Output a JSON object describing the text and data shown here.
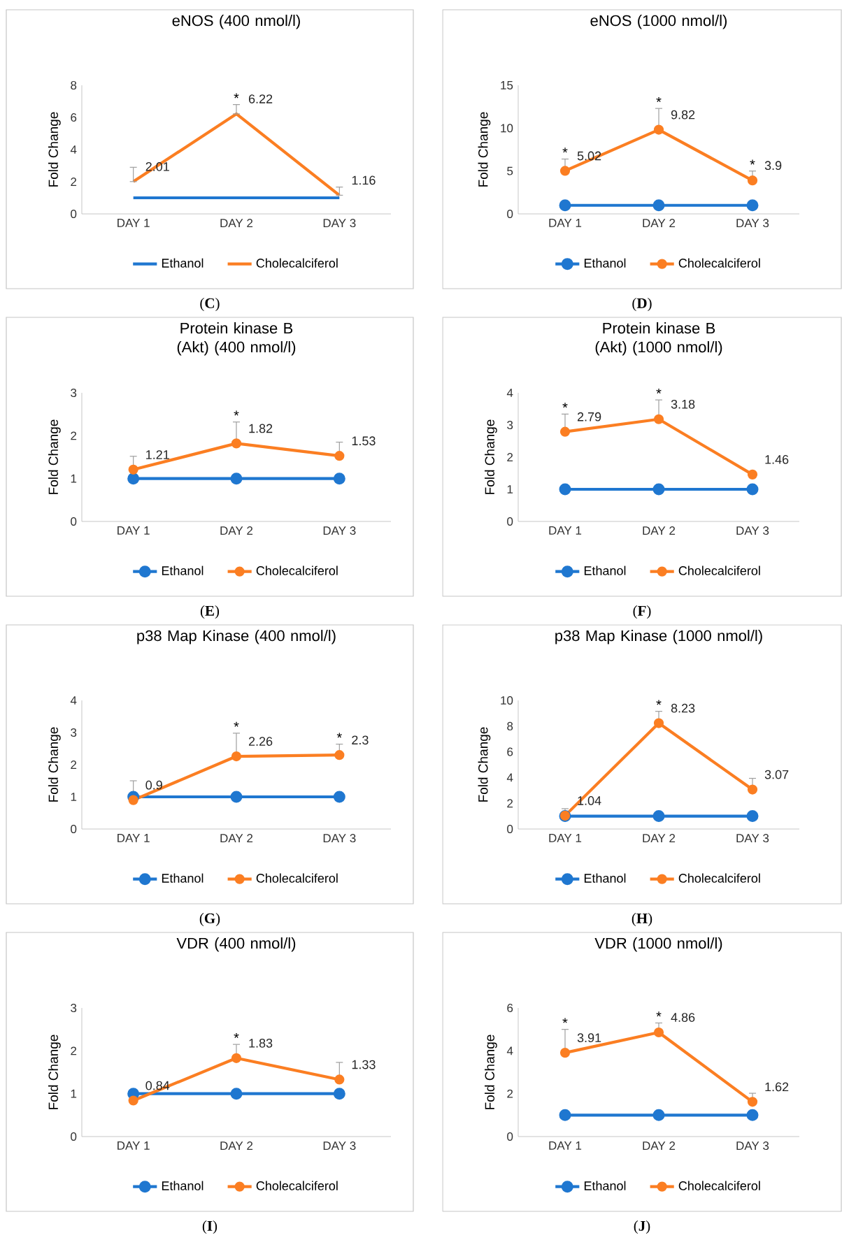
{
  "chart_data": [
    {
      "type": "line",
      "title": "eNOS (400 nmol/l)",
      "ylabel": "Fold Change",
      "categories": [
        "DAY 1",
        "DAY 2",
        "DAY 3"
      ],
      "ylim": [
        0,
        8
      ],
      "yticks": [
        0,
        2,
        4,
        6,
        8
      ],
      "legend": "bottom",
      "marker": "none",
      "series": [
        {
          "name": "Ethanol",
          "color": "#1f77d0",
          "values": [
            1,
            1,
            1
          ]
        },
        {
          "name": "Cholecalciferol",
          "color": "#fb7e22",
          "values": [
            2.01,
            6.22,
            1.16
          ],
          "errors": [
            [
              2.01,
              2.9
            ],
            [
              6.22,
              6.8
            ],
            [
              1.16,
              1.67
            ]
          ],
          "value_labels": [
            "2.01",
            "6.22",
            "1.16"
          ]
        }
      ],
      "annotations": [
        {
          "text": "*",
          "x": "DAY 2",
          "y": 6.8
        },
        "(**C**)"
      ]
    },
    {
      "type": "line",
      "title": "eNOS (1000 nmol/l)",
      "ylabel": "Fold Change",
      "categories": [
        "DAY 1",
        "DAY 2",
        "DAY 3"
      ],
      "ylim": [
        0,
        15
      ],
      "yticks": [
        0,
        5,
        10,
        15
      ],
      "legend": "bottom",
      "marker": "circle",
      "series": [
        {
          "name": "Ethanol",
          "color": "#1f77d0",
          "values": [
            1,
            1,
            1
          ]
        },
        {
          "name": "Cholecalciferol",
          "color": "#fb7e22",
          "values": [
            5.02,
            9.82,
            3.9
          ],
          "errors": [
            [
              5.02,
              6.4
            ],
            [
              9.82,
              12.3
            ],
            [
              3.9,
              5.0
            ]
          ],
          "value_labels": [
            "5.02",
            "9.82",
            "3.9"
          ]
        }
      ],
      "annotations": [
        {
          "text": "*",
          "x": "DAY 1",
          "y": 6.4
        },
        {
          "text": "*",
          "x": "DAY 2",
          "y": 12.3
        },
        {
          "text": "*",
          "x": "DAY 3",
          "y": 5.0
        },
        "(**D**)"
      ]
    },
    {
      "type": "line",
      "title": "Protein kinase B (Akt) (400 nmol/l)",
      "ylabel": "Fold Change",
      "categories": [
        "DAY 1",
        "DAY 2",
        "DAY 3"
      ],
      "ylim": [
        0,
        3
      ],
      "yticks": [
        0,
        1,
        2,
        3
      ],
      "legend": "bottom",
      "marker": "circle",
      "series": [
        {
          "name": "Ethanol",
          "color": "#1f77d0",
          "values": [
            1,
            1,
            1
          ]
        },
        {
          "name": "Cholecalciferol",
          "color": "#fb7e22",
          "values": [
            1.21,
            1.82,
            1.53
          ],
          "errors": [
            [
              1.21,
              1.52
            ],
            [
              1.82,
              2.32
            ],
            [
              1.53,
              1.85
            ]
          ],
          "value_labels": [
            "1.21",
            "1.82",
            "1.53"
          ]
        }
      ],
      "annotations": [
        {
          "text": "*",
          "x": "DAY 2",
          "y": 2.32
        },
        "(**E**)"
      ]
    },
    {
      "type": "line",
      "title": "Protein kinase B (Akt) (1000 nmol/l)",
      "ylabel": "Fold Change",
      "categories": [
        "DAY 1",
        "DAY 2",
        "DAY 3"
      ],
      "ylim": [
        0,
        4
      ],
      "yticks": [
        0,
        1,
        2,
        3,
        4
      ],
      "legend": "bottom",
      "marker": "circle",
      "series": [
        {
          "name": "Ethanol",
          "color": "#1f77d0",
          "values": [
            1,
            1,
            1
          ]
        },
        {
          "name": "Cholecalciferol",
          "color": "#fb7e22",
          "values": [
            2.79,
            3.18,
            1.46
          ],
          "errors": [
            [
              2.79,
              3.34
            ],
            [
              3.18,
              3.78
            ],
            null
          ],
          "value_labels": [
            "2.79",
            "3.18",
            "1.46"
          ]
        }
      ],
      "annotations": [
        {
          "text": "*",
          "x": "DAY 1",
          "y": 3.34
        },
        {
          "text": "*",
          "x": "DAY 2",
          "y": 3.78
        },
        "(**F**)"
      ]
    },
    {
      "type": "line",
      "title": "p38 Map Kinase (400 nmol/l)",
      "ylabel": "Fold Change",
      "categories": [
        "DAY 1",
        "DAY 2",
        "DAY 3"
      ],
      "ylim": [
        0,
        4
      ],
      "yticks": [
        0,
        1,
        2,
        3,
        4
      ],
      "legend": "bottom",
      "marker": "circle",
      "series": [
        {
          "name": "Ethanol",
          "color": "#1f77d0",
          "values": [
            1,
            1,
            1
          ]
        },
        {
          "name": "Cholecalciferol",
          "color": "#fb7e22",
          "values": [
            0.9,
            2.26,
            2.3
          ],
          "errors": [
            [
              0.9,
              1.5
            ],
            [
              2.26,
              2.98
            ],
            [
              2.3,
              2.64
            ]
          ],
          "value_labels": [
            "0.9",
            "2.26",
            "2.3"
          ]
        }
      ],
      "annotations": [
        {
          "text": "*",
          "x": "DAY 2",
          "y": 2.98
        },
        {
          "text": "*",
          "x": "DAY 3",
          "y": 2.64
        },
        "(**G**)"
      ]
    },
    {
      "type": "line",
      "title": "p38 Map Kinase (1000 nmol/l)",
      "ylabel": "Fold Change",
      "categories": [
        "DAY 1",
        "DAY 2",
        "DAY 3"
      ],
      "ylim": [
        0,
        10
      ],
      "yticks": [
        0,
        2,
        4,
        6,
        8,
        10
      ],
      "legend": "bottom",
      "marker": "circle",
      "series": [
        {
          "name": "Ethanol",
          "color": "#1f77d0",
          "values": [
            1,
            1,
            1
          ]
        },
        {
          "name": "Cholecalciferol",
          "color": "#fb7e22",
          "values": [
            1.04,
            8.23,
            3.07
          ],
          "errors": [
            [
              1.04,
              1.58
            ],
            [
              8.23,
              9.15
            ],
            [
              3.07,
              3.94
            ]
          ],
          "value_labels": [
            "1.04",
            "8.23",
            "3.07"
          ]
        }
      ],
      "annotations": [
        {
          "text": "*",
          "x": "DAY 2",
          "y": 9.15
        },
        "(**H**)"
      ]
    },
    {
      "type": "line",
      "title": "VDR (400 nmol/l)",
      "ylabel": "Fold Change",
      "categories": [
        "DAY 1",
        "DAY 2",
        "DAY 3"
      ],
      "ylim": [
        0,
        3
      ],
      "yticks": [
        0,
        1,
        2,
        3
      ],
      "legend": "bottom",
      "marker": "circle",
      "series": [
        {
          "name": "Ethanol",
          "color": "#1f77d0",
          "values": [
            1,
            1,
            1
          ]
        },
        {
          "name": "Cholecalciferol",
          "color": "#fb7e22",
          "values": [
            0.84,
            1.83,
            1.33
          ],
          "errors": [
            null,
            [
              1.83,
              2.15
            ],
            [
              1.33,
              1.73
            ]
          ],
          "value_labels": [
            "0.84",
            "1.83",
            "1.33"
          ]
        }
      ],
      "annotations": [
        {
          "text": "*",
          "x": "DAY 2",
          "y": 2.15
        },
        "(**I**)"
      ]
    },
    {
      "type": "line",
      "title": "VDR (1000 nmol/l)",
      "ylabel": "Fold Change",
      "categories": [
        "DAY 1",
        "DAY 2",
        "DAY 3"
      ],
      "ylim": [
        0,
        6
      ],
      "yticks": [
        0,
        2,
        4,
        6
      ],
      "legend": "bottom",
      "marker": "circle",
      "series": [
        {
          "name": "Ethanol",
          "color": "#1f77d0",
          "values": [
            1,
            1,
            1
          ]
        },
        {
          "name": "Cholecalciferol",
          "color": "#fb7e22",
          "values": [
            3.91,
            4.86,
            1.62
          ],
          "errors": [
            [
              3.91,
              5.0
            ],
            [
              4.86,
              5.3
            ],
            [
              1.62,
              2.02
            ]
          ],
          "value_labels": [
            "3.91",
            "4.86",
            "1.62"
          ]
        }
      ],
      "annotations": [
        {
          "text": "*",
          "x": "DAY 1",
          "y": 5.0
        },
        {
          "text": "*",
          "x": "DAY 2",
          "y": 5.3
        },
        "(**J**)"
      ]
    }
  ]
}
